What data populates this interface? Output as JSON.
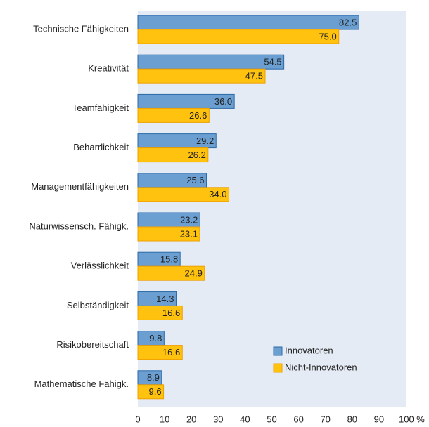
{
  "chart_data": {
    "type": "bar",
    "orientation": "horizontal",
    "categories": [
      "Technische Fähigkeiten",
      "Kreativität",
      "Teamfähigkeit",
      "Beharrlichkeit",
      "Managementfähigkeiten",
      "Naturwissensch. Fähigk.",
      "Verlässlichkeit",
      "Selbständigkeit",
      "Risikobereitschaft",
      "Mathematische Fähigk."
    ],
    "series": [
      {
        "name": "Innovatoren",
        "color": "#6b9fd1",
        "values": [
          82.5,
          54.5,
          36,
          29.2,
          25.6,
          23.2,
          15.8,
          14.3,
          9.8,
          8.9
        ],
        "value_labels": [
          "82.5",
          "54.5",
          "36.0",
          "29.2",
          "25.6",
          "23.2",
          "15.8",
          "14.3",
          "9.8",
          "8.9"
        ]
      },
      {
        "name": "Nicht-Innovatoren",
        "color": "#ffc20f",
        "values": [
          75,
          47.5,
          26.6,
          26.2,
          34,
          23.1,
          24.9,
          16.6,
          16.6,
          9.6
        ],
        "value_labels": [
          "75.0",
          "47.5",
          "26.6",
          "26.2",
          "34.0",
          "23.1",
          "24.9",
          "16.6",
          "16.6",
          "9.6"
        ]
      }
    ],
    "xlim": [
      0,
      100
    ],
    "xticks": [
      0,
      10,
      20,
      30,
      40,
      50,
      60,
      70,
      80,
      90,
      {
        "value": 100,
        "label": "100 %"
      }
    ],
    "legend": "lower right"
  }
}
